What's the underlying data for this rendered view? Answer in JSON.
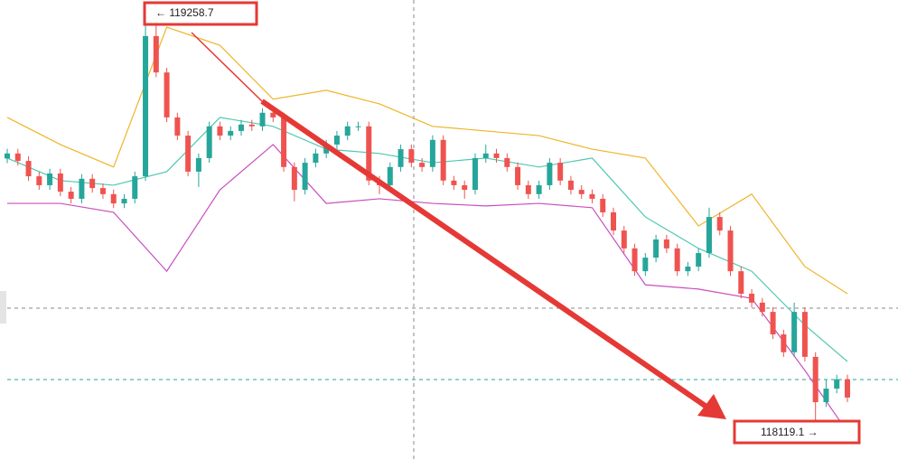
{
  "chart_data": {
    "type": "candlestick",
    "open": [
      118860,
      118874,
      118853,
      118810,
      118785,
      118818,
      118767,
      118747,
      118803,
      118777,
      118760,
      118734,
      118747,
      118810,
      119203,
      119101,
      118975,
      118924,
      118823,
      118861,
      118950,
      118924,
      118937,
      118955,
      118950,
      118988,
      118975,
      118836,
      118772,
      118848,
      118874,
      118899,
      118924,
      118950,
      118950,
      118798,
      118785,
      118836,
      118886,
      118848,
      118836,
      118912,
      118798,
      118785,
      118772,
      118861,
      118874,
      118861,
      118836,
      118785,
      118760,
      118785,
      118848,
      118798,
      118772,
      118760,
      118747,
      118709,
      118658,
      118608,
      118544,
      118582,
      118633,
      118608,
      118544,
      118557,
      118595,
      118696,
      118658,
      118544,
      118481,
      118456,
      118430,
      118367,
      118317,
      118430,
      118304,
      118177,
      118215,
      118241
    ],
    "close": [
      118874,
      118853,
      118810,
      118785,
      118818,
      118767,
      118747,
      118803,
      118777,
      118760,
      118734,
      118747,
      118810,
      119203,
      119101,
      118975,
      118924,
      118823,
      118861,
      118950,
      118924,
      118937,
      118955,
      118950,
      118988,
      118975,
      118836,
      118772,
      118848,
      118874,
      118899,
      118924,
      118950,
      118950,
      118798,
      118785,
      118836,
      118886,
      118848,
      118836,
      118912,
      118798,
      118785,
      118772,
      118861,
      118874,
      118861,
      118836,
      118785,
      118760,
      118785,
      118848,
      118798,
      118772,
      118760,
      118747,
      118709,
      118658,
      118608,
      118544,
      118582,
      118633,
      118608,
      118544,
      118557,
      118595,
      118696,
      118658,
      118544,
      118481,
      118456,
      118430,
      118367,
      118317,
      118430,
      118304,
      118177,
      118215,
      118241,
      118190
    ],
    "high": [
      118887,
      118887,
      118866,
      118823,
      118831,
      118831,
      118780,
      118816,
      118816,
      118790,
      118773,
      118760,
      118823,
      119258.7,
      119240,
      119114,
      118988,
      118937,
      118874,
      118963,
      118963,
      118950,
      118968,
      118968,
      119001,
      119001,
      118988,
      118849,
      118861,
      118887,
      118912,
      118937,
      118963,
      118963,
      118963,
      118811,
      118849,
      118899,
      118899,
      118861,
      118925,
      118925,
      118811,
      118798,
      118874,
      118899,
      118887,
      118874,
      118849,
      118798,
      118798,
      118861,
      118861,
      118811,
      118785,
      118773,
      118760,
      118722,
      118671,
      118621,
      118595,
      118646,
      118646,
      118621,
      118570,
      118608,
      118722,
      118709,
      118671,
      118557,
      118494,
      118469,
      118443,
      118380,
      118456,
      118443,
      118317,
      118241,
      118254,
      118254
    ],
    "low": [
      118847,
      118840,
      118797,
      118772,
      118772,
      118754,
      118734,
      118734,
      118764,
      118747,
      118721,
      118721,
      118734,
      118797,
      119088,
      118962,
      118911,
      118810,
      118780,
      118848,
      118911,
      118911,
      118924,
      118937,
      118937,
      118962,
      118823,
      118740,
      118759,
      118835,
      118861,
      118886,
      118911,
      118937,
      118785,
      118760,
      118772,
      118823,
      118835,
      118823,
      118823,
      118785,
      118772,
      118747,
      118759,
      118848,
      118848,
      118823,
      118772,
      118747,
      118747,
      118772,
      118785,
      118759,
      118747,
      118734,
      118696,
      118645,
      118595,
      118531,
      118531,
      118569,
      118595,
      118531,
      118531,
      118544,
      118582,
      118645,
      118531,
      118468,
      118443,
      118417,
      118354,
      118304,
      118304,
      118291,
      118119.1,
      118164,
      118202,
      118177
    ],
    "up_color": "#26a69a",
    "down_color": "#ef5350",
    "ylim": [
      118015,
      119304
    ],
    "band_x": [
      0,
      5,
      10,
      15,
      20,
      25,
      30,
      35,
      40,
      45,
      50,
      55,
      60,
      65,
      70,
      75,
      79
    ],
    "bands": [
      {
        "color": "#f0b429",
        "values": [
          118975,
          118899,
          118836,
          119228,
          119177,
          119026,
          119051,
          119013,
          118950,
          118937,
          118924,
          118886,
          118861,
          118671,
          118760,
          118557,
          118481
        ]
      },
      {
        "color": "#4fc9b0",
        "values": [
          118861,
          118798,
          118785,
          118823,
          118975,
          118950,
          118886,
          118874,
          118848,
          118861,
          118836,
          118861,
          118696,
          118608,
          118544,
          118393,
          118291
        ]
      },
      {
        "color": "#c94fc0",
        "values": [
          118734,
          118734,
          118709,
          118544,
          118772,
          118899,
          118734,
          118747,
          118734,
          118727,
          118734,
          118722,
          118506,
          118494,
          118468,
          118266,
          118094
        ]
      }
    ],
    "annotations": [
      {
        "text": "← 119258.7"
      },
      {
        "text": "118119.1 →"
      }
    ]
  }
}
